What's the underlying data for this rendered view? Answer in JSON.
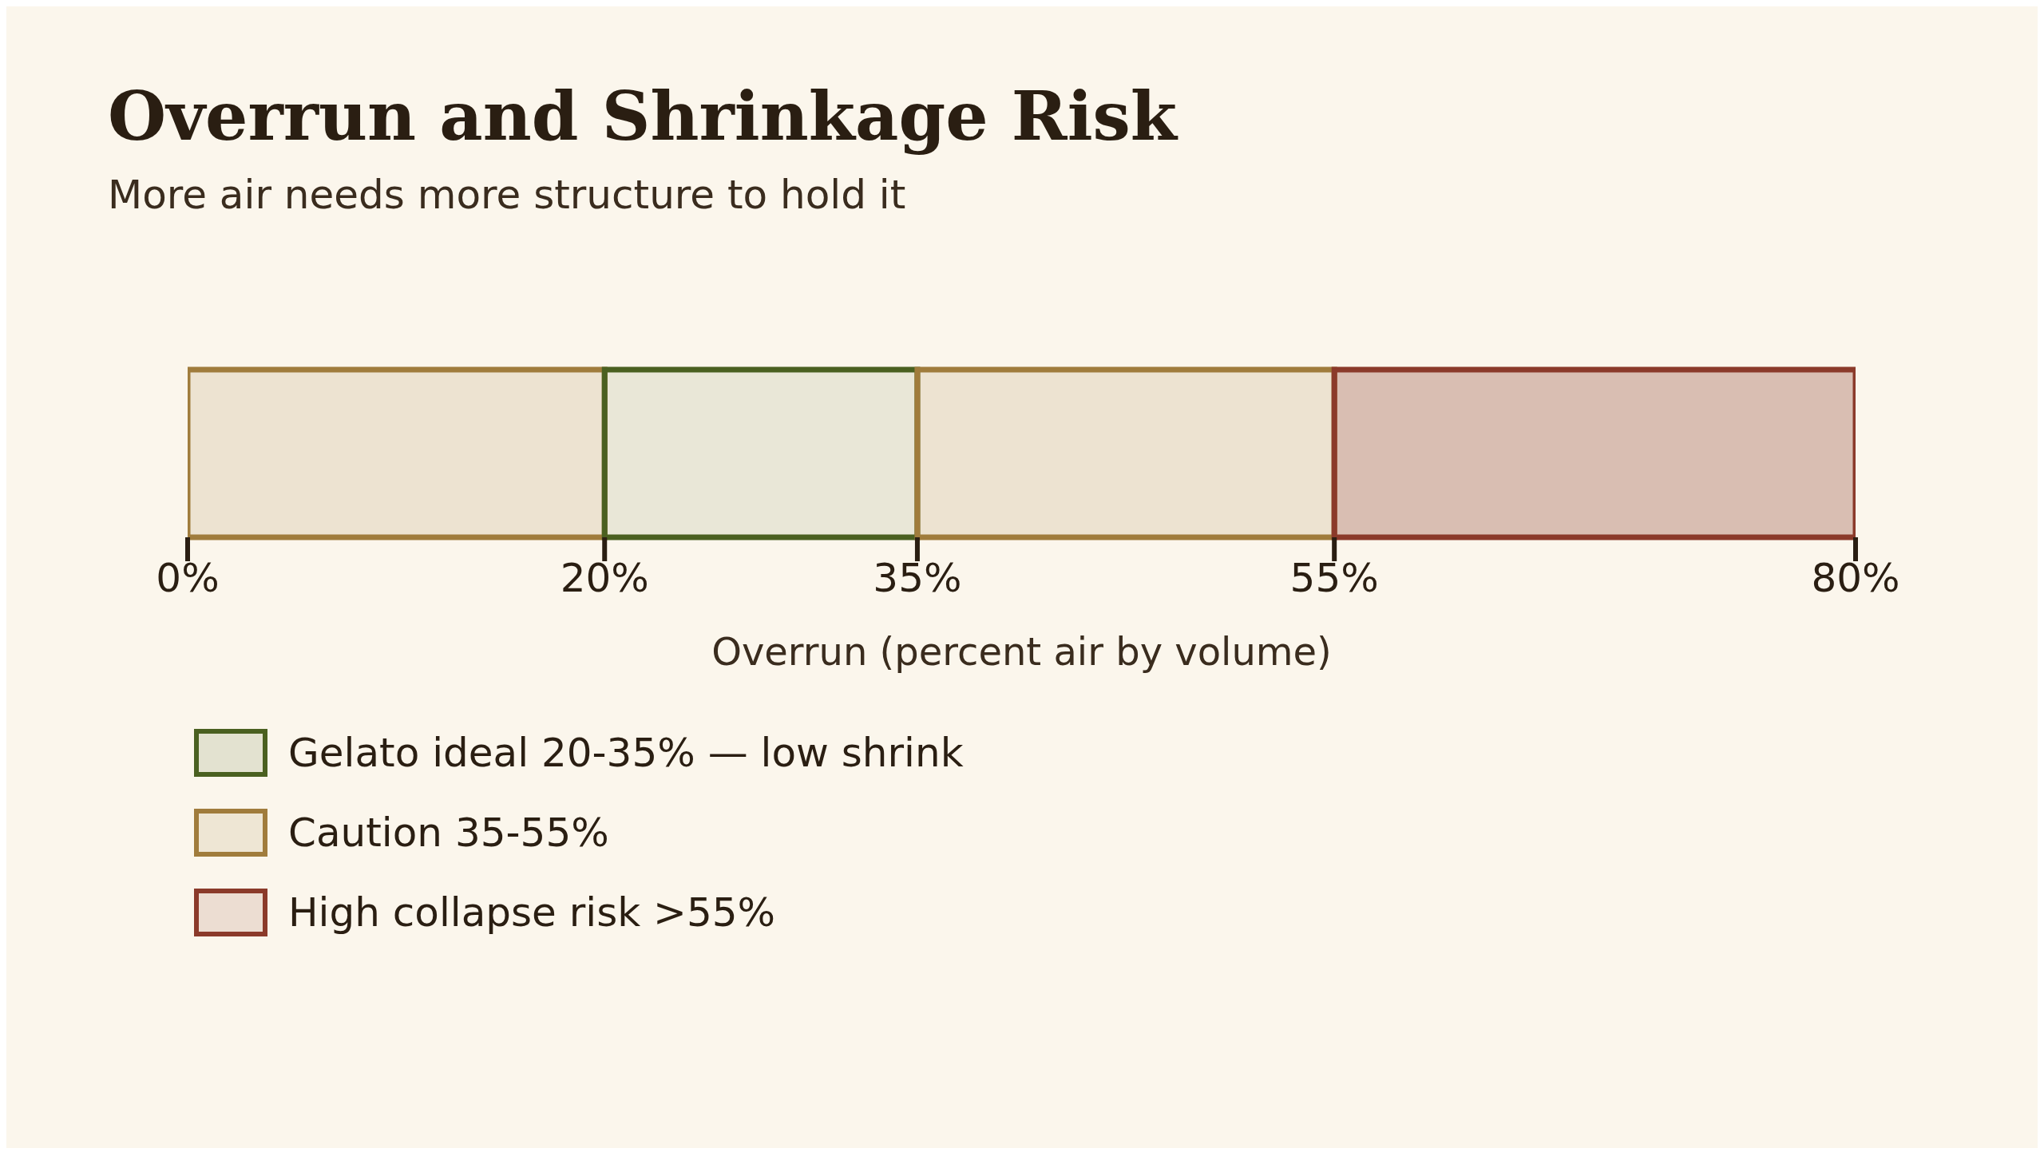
{
  "chart_data": {
    "type": "bar",
    "orientation": "horizontal",
    "stacked": true,
    "title": "Overrun and Shrinkage Risk",
    "subtitle": "More air needs more structure to hold it",
    "xlabel": "Overrun (percent air by volume)",
    "categories": [
      null
    ],
    "series": [
      {
        "color": "#a07c3c",
        "values": [
          20
        ]
      },
      {
        "name": "Gelato ideal 20-35% — low shrink",
        "color": "#4a6020",
        "values": [
          15
        ]
      },
      {
        "name": "Caution 35-55%",
        "color": "#a07c3c",
        "values": [
          20
        ]
      },
      {
        "name": "High collapse risk >55%",
        "color": "#8b3a2a",
        "values": [
          25
        ]
      }
    ],
    "xlim": [
      0,
      80
    ],
    "xticks": [
      {
        "value": 0,
        "label": "0%"
      },
      {
        "value": 20,
        "label": "20%"
      },
      {
        "value": 35,
        "label": "35%"
      },
      {
        "value": 55,
        "label": "55%"
      },
      {
        "value": 80,
        "label": "80%"
      }
    ],
    "legend": "bottom left"
  }
}
